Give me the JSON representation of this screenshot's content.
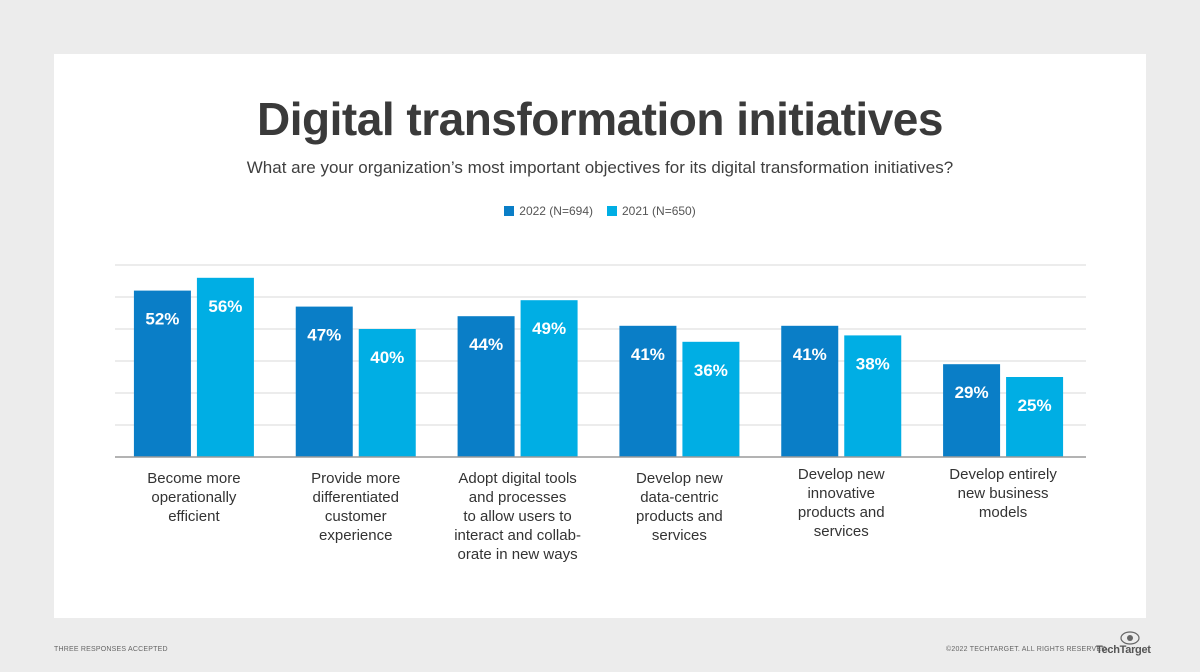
{
  "header": {
    "title": "Digital transformation initiatives",
    "subtitle": "What are your organization’s most important objectives for its digital transformation initiatives?"
  },
  "colors": {
    "series_2022": "#0a7ec7",
    "series_2021": "#00aee4",
    "grid": "#d9d9d9",
    "axis": "#9a9a9a"
  },
  "chart_data": {
    "type": "bar",
    "categories": [
      "Become more\noperationally\nefficient",
      "Provide  more\ndifferentiated\ncustomer\nexperience",
      "Adopt digital tools\nand processes\n to allow users to\ninteract and collab-\norate in new ways",
      "Develop new\ndata-centric\nproducts and\nservices",
      "Develop new\ninnovative\nproducts and\nservices",
      "Develop entirely\nnew business\nmodels"
    ],
    "series": [
      {
        "name": "2022 (N=694)",
        "values": [
          52,
          47,
          44,
          41,
          41,
          29
        ],
        "labels": [
          "52%",
          "47%",
          "44%",
          "41%",
          "41%",
          "29%"
        ]
      },
      {
        "name": "2021 (N=650)",
        "values": [
          56,
          40,
          49,
          36,
          38,
          25
        ],
        "labels": [
          "56%",
          "40%",
          "49%",
          "36%",
          "38%",
          "25%"
        ]
      }
    ],
    "ylim": [
      0,
      60
    ],
    "grid": true,
    "legend": "top-center"
  },
  "footer": {
    "note": "THREE RESPONSES ACCEPTED",
    "copyright": "©2022 TECHTARGET. ALL RIGHTS RESERVED",
    "logo": "TechTarget",
    "logo_icon": "techtarget-eye-icon"
  }
}
